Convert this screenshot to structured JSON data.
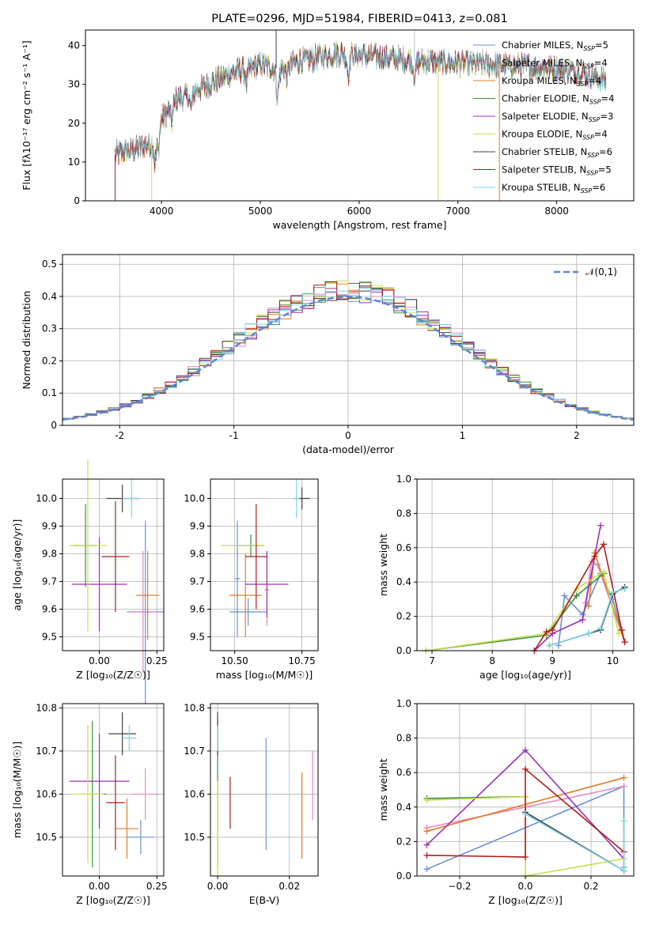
{
  "chart_data": [
    {
      "id": "spectrum",
      "type": "line",
      "title": "PLATE=0296, MJD=51984, FIBERID=0413, z=0.081",
      "xlabel": "wavelength [Angstrom, rest frame]",
      "ylabel": "Flux [fλ10⁻¹⁷ erg cm⁻² s⁻¹ A⁻¹]",
      "xlim": [
        3230,
        8780
      ],
      "ylim": [
        0,
        44
      ],
      "xticks": [
        4000,
        5000,
        6000,
        7000,
        8000
      ],
      "yticks": [
        0,
        10,
        20,
        30,
        40
      ],
      "legend_position": "upper-right",
      "series": [
        {
          "name": "Chabrier MILES, N",
          "sub": "SSP",
          "tail": "=5",
          "color": "#6a8fd8"
        },
        {
          "name": "Salpeter MILES, N",
          "sub": "SSP",
          "tail": "=4",
          "color": "#e389c3"
        },
        {
          "name": "Kroupa MILES, N",
          "sub": "SSP",
          "tail": "=4",
          "color": "#e07c2a"
        },
        {
          "name": "Chabrier ELODIE, N",
          "sub": "SSP",
          "tail": "=4",
          "color": "#3b8f3b"
        },
        {
          "name": "Salpeter ELODIE, N",
          "sub": "SSP",
          "tail": "=3",
          "color": "#9b30b8"
        },
        {
          "name": "Kroupa ELODIE, N",
          "sub": "SSP",
          "tail": "=4",
          "color": "#c9e04a"
        },
        {
          "name": "Chabrier STELIB, N",
          "sub": "SSP",
          "tail": "=6",
          "color": "#404040"
        },
        {
          "name": "Salpeter STELIB, N",
          "sub": "SSP",
          "tail": "=5",
          "color": "#b01c1c"
        },
        {
          "name": "Kroupa STELIB, N",
          "sub": "SSP",
          "tail": "=6",
          "color": "#7fd3e6"
        }
      ],
      "continuum": [
        [
          3530,
          12
        ],
        [
          3700,
          13
        ],
        [
          3900,
          15
        ],
        [
          4000,
          21
        ],
        [
          4150,
          26
        ],
        [
          4400,
          29
        ],
        [
          4700,
          33
        ],
        [
          5000,
          35
        ],
        [
          5200,
          34
        ],
        [
          5400,
          36
        ],
        [
          5800,
          38
        ],
        [
          6200,
          37
        ],
        [
          6600,
          36
        ],
        [
          7000,
          35.5
        ],
        [
          7400,
          35
        ],
        [
          7800,
          34.5
        ],
        [
          8200,
          33.5
        ],
        [
          8500,
          31
        ]
      ]
    },
    {
      "id": "residuals",
      "type": "histogram",
      "xlabel": "(data-model)/error",
      "ylabel": "Normed distribution",
      "xlim": [
        -2.5,
        2.5
      ],
      "ylim": [
        0,
        0.53
      ],
      "xticks": [
        -2,
        -1,
        0,
        1,
        2
      ],
      "yticks": [
        0.0,
        0.1,
        0.2,
        0.3,
        0.4,
        0.5
      ],
      "legend": "𝒩(0,1)",
      "legend_position": "upper-right",
      "reference_curve": {
        "type": "normal",
        "mean": 0,
        "sd": 1,
        "color": "#5b86d6"
      }
    },
    {
      "id": "age-vs-Z",
      "type": "scatter",
      "xlabel": "Z [log₁₀(Z/Z☉)]",
      "ylabel": "age  [log₁₀(age/yr)]",
      "xlim": [
        -0.16,
        0.28
      ],
      "ylim": [
        9.45,
        10.07
      ],
      "xticks": [
        "0.00",
        "0.25"
      ],
      "yticks": [
        "9.5",
        "9.6",
        "9.7",
        "9.8",
        "9.9",
        "10.0"
      ],
      "points": [
        {
          "x": 0.2,
          "y": 9.59,
          "xerr": 0.08,
          "yerr": 0.33,
          "color": "#6a8fd8"
        },
        {
          "x": 0.19,
          "y": 9.59,
          "xerr": 0.06,
          "yerr": 0.22,
          "color": "#e389c3"
        },
        {
          "x": 0.21,
          "y": 9.65,
          "xerr": 0.05,
          "yerr": 0.16,
          "color": "#e07c2a"
        },
        {
          "x": -0.06,
          "y": 9.83,
          "xerr": 0.05,
          "yerr": 0.15,
          "color": "#3b8f3b"
        },
        {
          "x": 0.0,
          "y": 9.69,
          "xerr": 0.12,
          "yerr": 0.17,
          "color": "#9b30b8"
        },
        {
          "x": -0.05,
          "y": 9.83,
          "xerr": 0.08,
          "yerr": 0.31,
          "color": "#c9e04a"
        },
        {
          "x": 0.1,
          "y": 10.0,
          "xerr": 0.07,
          "yerr": 0.05,
          "color": "#404040"
        },
        {
          "x": 0.07,
          "y": 9.79,
          "xerr": 0.06,
          "yerr": 0.2,
          "color": "#b01c1c"
        },
        {
          "x": 0.14,
          "y": 10.0,
          "xerr": 0.04,
          "yerr": 0.07,
          "color": "#7fd3e6"
        }
      ]
    },
    {
      "id": "age-vs-mass",
      "type": "scatter",
      "xlabel": "mass [log₁₀(M/M☉)]",
      "ylabel": "",
      "xlim": [
        10.41,
        10.81
      ],
      "ylim": [
        9.45,
        10.07
      ],
      "xticks": [
        "10.50",
        "10.75"
      ],
      "yticks": [
        "9.5",
        "9.6",
        "9.7",
        "9.8",
        "9.9",
        "10.0"
      ],
      "points": [
        {
          "x": 10.51,
          "y": 9.71,
          "xerr": 0.01,
          "yerr": 0.21,
          "color": "#6a8fd8"
        },
        {
          "x": 10.55,
          "y": 9.59,
          "xerr": 0.07,
          "yerr": 0.05,
          "color": "#6a8fd8"
        },
        {
          "x": 10.62,
          "y": 9.67,
          "xerr": 0.01,
          "yerr": 0.13,
          "color": "#e389c3"
        },
        {
          "x": 10.54,
          "y": 9.65,
          "xerr": 0.06,
          "yerr": 0.15,
          "color": "#e07c2a"
        },
        {
          "x": 10.56,
          "y": 9.83,
          "xerr": 0.05,
          "yerr": 0.04,
          "color": "#3b8f3b"
        },
        {
          "x": 10.62,
          "y": 9.69,
          "xerr": 0.08,
          "yerr": 0.12,
          "color": "#9b30b8"
        },
        {
          "x": 10.53,
          "y": 9.83,
          "xerr": 0.08,
          "yerr": 0.0,
          "color": "#c9e04a"
        },
        {
          "x": 10.75,
          "y": 10.0,
          "xerr": 0.03,
          "yerr": 0.04,
          "color": "#404040"
        },
        {
          "x": 10.58,
          "y": 9.79,
          "xerr": 0.04,
          "yerr": 0.19,
          "color": "#b01c1c"
        },
        {
          "x": 10.73,
          "y": 10.0,
          "xerr": 0.01,
          "yerr": 0.07,
          "color": "#7fd3e6"
        }
      ]
    },
    {
      "id": "weight-vs-age",
      "type": "line",
      "xlabel": "age  [log₁₀(age/yr)]",
      "ylabel": "mass weight",
      "xlim": [
        6.75,
        10.35
      ],
      "ylim": [
        0,
        1.0
      ],
      "xticks": [
        "7",
        "8",
        "9",
        "10"
      ],
      "yticks": [
        "0.0",
        "0.2",
        "0.4",
        "0.6",
        "0.8",
        "1.0"
      ],
      "series": [
        {
          "color": "#6a8fd8",
          "points": [
            [
              9.1,
              0.03
            ],
            [
              9.2,
              0.32
            ],
            [
              9.5,
              0.21
            ],
            [
              9.8,
              0.45
            ],
            [
              10.0,
              0.3
            ],
            [
              10.2,
              0.05
            ]
          ]
        },
        {
          "color": "#e389c3",
          "points": [
            [
              9.55,
              0.28
            ],
            [
              9.65,
              0.52
            ],
            [
              9.75,
              0.5
            ],
            [
              10.2,
              0.05
            ]
          ]
        },
        {
          "color": "#e07c2a",
          "points": [
            [
              9.6,
              0.26
            ],
            [
              9.7,
              0.57
            ],
            [
              10.2,
              0.05
            ]
          ]
        },
        {
          "color": "#3b8f3b",
          "points": [
            [
              6.9,
              0.0
            ],
            [
              8.9,
              0.09
            ],
            [
              9.4,
              0.32
            ],
            [
              9.85,
              0.45
            ]
          ]
        },
        {
          "color": "#9b30b8",
          "points": [
            [
              8.7,
              0.0
            ],
            [
              9.0,
              0.1
            ],
            [
              9.5,
              0.18
            ],
            [
              9.8,
              0.73
            ]
          ]
        },
        {
          "color": "#c9e04a",
          "points": [
            [
              6.9,
              0.0
            ],
            [
              8.9,
              0.1
            ],
            [
              9.4,
              0.36
            ],
            [
              9.85,
              0.46
            ],
            [
              10.1,
              0.1
            ]
          ]
        },
        {
          "color": "#404040",
          "points": [
            [
              8.95,
              0.03
            ],
            [
              9.6,
              0.1
            ],
            [
              9.8,
              0.12
            ],
            [
              10.0,
              0.33
            ],
            [
              10.2,
              0.37
            ]
          ]
        },
        {
          "color": "#b01c1c",
          "points": [
            [
              8.7,
              0.0
            ],
            [
              8.9,
              0.11
            ],
            [
              9.0,
              0.12
            ],
            [
              9.7,
              0.55
            ],
            [
              9.85,
              0.62
            ],
            [
              10.15,
              0.12
            ],
            [
              10.2,
              0.05
            ]
          ]
        },
        {
          "color": "#7fd3e6",
          "points": [
            [
              8.95,
              0.03
            ],
            [
              9.6,
              0.1
            ],
            [
              9.8,
              0.13
            ],
            [
              10.0,
              0.34
            ],
            [
              10.2,
              0.36
            ]
          ]
        }
      ]
    },
    {
      "id": "mass-vs-Z",
      "type": "scatter",
      "xlabel": "Z [log₁₀(Z/Z☉)]",
      "ylabel": "mass [log₁₀(M/M☉)]",
      "xlim": [
        -0.16,
        0.28
      ],
      "ylim": [
        10.41,
        10.81
      ],
      "xticks": [
        "0.00",
        "0.25"
      ],
      "yticks": [
        "10.5",
        "10.6",
        "10.7",
        "10.8"
      ],
      "points": [
        {
          "x": 0.18,
          "y": 10.5,
          "xerr": 0.06,
          "yerr": 0.04,
          "color": "#6a8fd8"
        },
        {
          "x": 0.2,
          "y": 10.6,
          "xerr": 0.06,
          "yerr": 0.06,
          "color": "#e389c3"
        },
        {
          "x": 0.12,
          "y": 10.52,
          "xerr": 0.05,
          "yerr": 0.07,
          "color": "#e07c2a"
        },
        {
          "x": -0.03,
          "y": 10.6,
          "xerr": 0.06,
          "yerr": 0.17,
          "color": "#3b8f3b"
        },
        {
          "x": 0.0,
          "y": 10.63,
          "xerr": 0.13,
          "yerr": 0.11,
          "color": "#9b30b8"
        },
        {
          "x": -0.05,
          "y": 10.6,
          "xerr": 0.07,
          "yerr": 0.16,
          "color": "#c9e04a"
        },
        {
          "x": 0.1,
          "y": 10.74,
          "xerr": 0.06,
          "yerr": 0.05,
          "color": "#404040"
        },
        {
          "x": 0.07,
          "y": 10.58,
          "xerr": 0.04,
          "yerr": 0.11,
          "color": "#b01c1c"
        },
        {
          "x": 0.13,
          "y": 10.73,
          "xerr": 0.03,
          "yerr": 0.03,
          "color": "#7fd3e6"
        }
      ]
    },
    {
      "id": "mass-vs-EBV",
      "type": "scatter",
      "xlabel": "E(B-V)",
      "ylabel": "",
      "xlim": [
        -0.002,
        0.028
      ],
      "ylim": [
        10.41,
        10.81
      ],
      "xticks": [
        "0.00",
        "0.02"
      ],
      "yticks": [
        "10.5",
        "10.6",
        "10.7",
        "10.8"
      ],
      "points": [
        {
          "x": 0.0135,
          "y": 10.6,
          "yerr": 0.13,
          "color": "#6a8fd8"
        },
        {
          "x": 0.0265,
          "y": 10.62,
          "yerr": 0.08,
          "color": "#e389c3"
        },
        {
          "x": 0.0235,
          "y": 10.55,
          "yerr": 0.1,
          "color": "#e07c2a"
        },
        {
          "x": 0.0,
          "y": 10.6,
          "yerr": 0.17,
          "color": "#3b8f3b"
        },
        {
          "x": 0.0,
          "y": 10.52,
          "yerr": 0.11,
          "color": "#c9e04a"
        },
        {
          "x": 0.0,
          "y": 10.74,
          "yerr": 0.05,
          "color": "#404040"
        },
        {
          "x": 0.0035,
          "y": 10.58,
          "yerr": 0.06,
          "color": "#b01c1c"
        },
        {
          "x": 0.0,
          "y": 10.73,
          "yerr": 0.03,
          "color": "#7fd3e6"
        }
      ]
    },
    {
      "id": "weight-vs-Z",
      "type": "line",
      "xlabel": "Z [log₁₀(Z/Z☉)]",
      "ylabel": "mass weight",
      "xlim": [
        -0.33,
        0.33
      ],
      "ylim": [
        0,
        1.0
      ],
      "xticks": [
        "−0.2",
        "0.0",
        "0.2"
      ],
      "yticks": [
        "0.0",
        "0.2",
        "0.4",
        "0.6",
        "0.8",
        "1.0"
      ],
      "series": [
        {
          "color": "#6a8fd8",
          "points": [
            [
              -0.3,
              0.04
            ],
            [
              0.3,
              0.52
            ],
            [
              0.3,
              0.05
            ]
          ]
        },
        {
          "color": "#e389c3",
          "points": [
            [
              -0.3,
              0.28
            ],
            [
              0.3,
              0.52
            ]
          ]
        },
        {
          "color": "#e07c2a",
          "points": [
            [
              -0.3,
              0.26
            ],
            [
              0.3,
              0.57
            ]
          ]
        },
        {
          "color": "#3b8f3b",
          "points": [
            [
              -0.3,
              0.45
            ],
            [
              0.0,
              0.46
            ]
          ]
        },
        {
          "color": "#9b30b8",
          "points": [
            [
              -0.3,
              0.18
            ],
            [
              0.0,
              0.73
            ],
            [
              0.3,
              0.1
            ]
          ]
        },
        {
          "color": "#c9e04a",
          "points": [
            [
              -0.3,
              0.44
            ],
            [
              0.0,
              0.46
            ],
            [
              0.0,
              0.0
            ],
            [
              0.3,
              0.1
            ]
          ]
        },
        {
          "color": "#404040",
          "points": [
            [
              0.0,
              0.37
            ],
            [
              0.3,
              0.03
            ]
          ]
        },
        {
          "color": "#b01c1c",
          "points": [
            [
              -0.3,
              0.12
            ],
            [
              0.0,
              0.11
            ],
            [
              0.0,
              0.62
            ],
            [
              0.3,
              0.14
            ]
          ]
        },
        {
          "color": "#7fd3e6",
          "points": [
            [
              0.0,
              0.36
            ],
            [
              0.3,
              0.03
            ],
            [
              0.3,
              0.32
            ]
          ]
        }
      ]
    }
  ]
}
